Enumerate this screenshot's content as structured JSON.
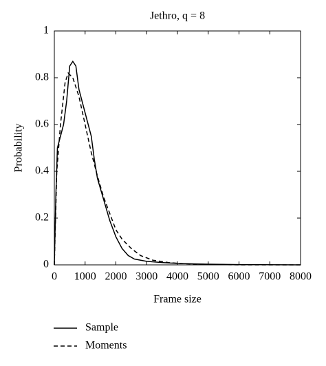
{
  "chart_data": {
    "type": "line",
    "title": "Jethro, q = 8",
    "xlabel": "Frame size",
    "ylabel": "Probability",
    "xlim": [
      0,
      8000
    ],
    "xticks": [
      0,
      1000,
      2000,
      3000,
      4000,
      5000,
      6000,
      7000,
      8000
    ],
    "ylim": [
      0,
      1
    ],
    "yticks": [
      0,
      0.2,
      0.4,
      0.6,
      0.8,
      1
    ],
    "legend": "bottom-left",
    "series": [
      {
        "name": "Sample",
        "color": "#000000",
        "dashed": false,
        "x": [
          0,
          50,
          100,
          200,
          300,
          400,
          500,
          600,
          700,
          800,
          1000,
          1200,
          1300,
          1400,
          1600,
          1800,
          2000,
          2200,
          2400,
          2600,
          3000,
          3500,
          4000,
          5000,
          6000,
          8000
        ],
        "values": [
          0,
          0.3,
          0.5,
          0.55,
          0.6,
          0.7,
          0.85,
          0.87,
          0.85,
          0.75,
          0.65,
          0.55,
          0.45,
          0.37,
          0.28,
          0.19,
          0.12,
          0.07,
          0.04,
          0.025,
          0.015,
          0.01,
          0.006,
          0.003,
          0.001,
          0
        ]
      },
      {
        "name": "Moments",
        "color": "#000000",
        "dashed": true,
        "x": [
          0,
          80,
          200,
          350,
          450,
          600,
          800,
          1000,
          1200,
          1400,
          1600,
          1800,
          2000,
          2200,
          2500,
          2800,
          3200,
          3700,
          4200,
          5000,
          6000,
          8000
        ],
        "values": [
          0,
          0.4,
          0.6,
          0.78,
          0.82,
          0.8,
          0.72,
          0.6,
          0.48,
          0.38,
          0.29,
          0.22,
          0.15,
          0.11,
          0.07,
          0.04,
          0.02,
          0.01,
          0.005,
          0.002,
          0,
          0
        ]
      }
    ]
  }
}
